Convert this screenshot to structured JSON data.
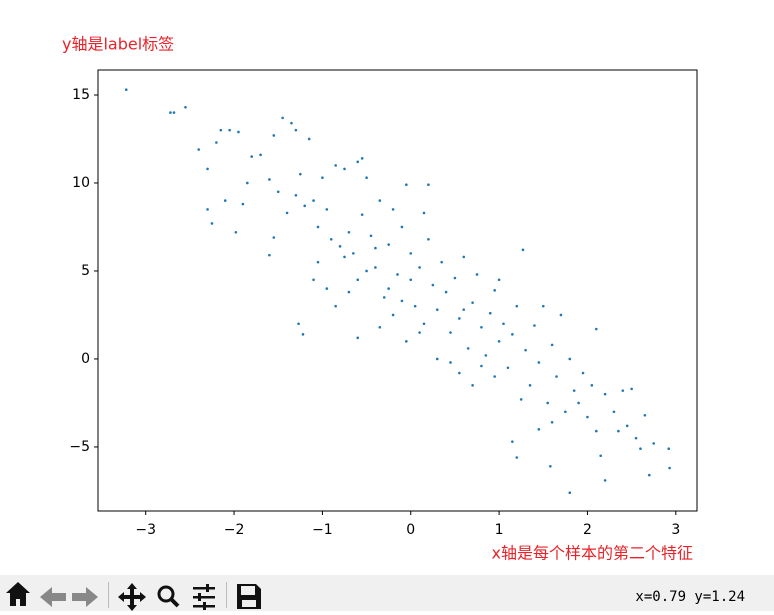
{
  "chart_data": {
    "type": "scatter",
    "y_label": "y轴是label标签",
    "x_label": "x轴是每个样本的第二个特征",
    "color": "#1f77b4",
    "xlim": [
      -3.54,
      3.24
    ],
    "ylim": [
      -8.64,
      16.42
    ],
    "xticks": [
      {
        "value": -3,
        "label": "−3"
      },
      {
        "value": -2,
        "label": "−2"
      },
      {
        "value": -1,
        "label": "−1"
      },
      0,
      1,
      2,
      3
    ],
    "yticks": [
      {
        "value": -5,
        "label": "−5"
      },
      0,
      5,
      10,
      15
    ],
    "x": [
      -3.22,
      -2.72,
      -2.68,
      -2.55,
      -2.4,
      -2.3,
      -2.2,
      -2.15,
      -2.05,
      -1.95,
      -2.1,
      -2.3,
      -2.25,
      -1.98,
      -1.9,
      -1.85,
      -1.8,
      -1.7,
      -1.6,
      -1.55,
      -1.45,
      -1.35,
      -1.3,
      -1.15,
      -1.5,
      -1.4,
      -1.3,
      -1.25,
      -1.2,
      -1.1,
      -1.05,
      -1.0,
      -0.95,
      -0.9,
      -0.85,
      -0.75,
      -0.6,
      -0.55,
      -0.5,
      -1.55,
      -1.6,
      -1.22,
      -1.27,
      -1.1,
      -1.05,
      -0.95,
      -0.8,
      -0.75,
      -0.7,
      -0.65,
      -0.6,
      -0.55,
      -0.5,
      -0.45,
      -0.4,
      -0.35,
      -0.3,
      -0.25,
      -0.2,
      -0.15,
      -0.1,
      -0.05,
      0.0,
      0.05,
      0.1,
      0.15,
      0.2,
      0.25,
      -0.6,
      -0.35,
      -0.2,
      -0.05,
      0.1,
      0.3,
      0.35,
      0.4,
      0.45,
      0.5,
      0.55,
      0.6,
      0.65,
      0.7,
      0.75,
      0.8,
      0.85,
      0.9,
      0.95,
      1.0,
      0.55,
      0.7,
      0.8,
      0.95,
      1.0,
      1.05,
      1.1,
      1.15,
      1.2,
      1.27,
      1.25,
      1.3,
      1.35,
      1.4,
      1.45,
      1.5,
      1.55,
      1.6,
      1.65,
      1.7,
      1.75,
      1.8,
      1.85,
      1.15,
      1.2,
      1.45,
      1.6,
      1.58,
      1.8,
      1.9,
      1.95,
      2.0,
      2.05,
      2.1,
      2.1,
      2.15,
      2.2,
      2.2,
      2.3,
      2.35,
      2.4,
      2.45,
      2.5,
      2.55,
      2.6,
      2.65,
      2.7,
      2.75,
      2.92,
      2.93,
      0.45,
      0.3,
      -0.1,
      -0.85,
      -0.7,
      0.2,
      0.0,
      -0.4,
      -0.25,
      0.6,
      0.15
    ],
    "values": [
      15.3,
      14.0,
      14.0,
      14.3,
      11.9,
      10.8,
      12.3,
      13.0,
      13.0,
      12.9,
      9.0,
      8.5,
      7.7,
      7.2,
      8.8,
      10.0,
      11.5,
      11.6,
      10.2,
      12.7,
      13.7,
      13.4,
      13.0,
      12.5,
      9.5,
      8.3,
      9.3,
      10.5,
      8.7,
      9.0,
      7.5,
      10.3,
      8.5,
      6.8,
      11.0,
      10.8,
      11.2,
      11.4,
      10.3,
      6.9,
      5.9,
      1.4,
      2.0,
      4.5,
      5.5,
      4.0,
      6.4,
      5.8,
      7.2,
      6.0,
      4.5,
      8.2,
      5.0,
      7.0,
      6.3,
      9.0,
      3.5,
      6.5,
      8.5,
      4.8,
      7.5,
      9.9,
      6.0,
      3.0,
      5.2,
      8.3,
      9.9,
      4.2,
      1.2,
      1.8,
      2.5,
      1.0,
      1.5,
      2.8,
      5.5,
      3.8,
      1.5,
      4.6,
      2.3,
      5.8,
      0.6,
      3.2,
      4.8,
      1.8,
      0.2,
      2.6,
      3.9,
      1.0,
      -0.8,
      -1.5,
      -0.4,
      -1.0,
      4.5,
      2.0,
      -0.5,
      1.4,
      3.0,
      6.2,
      -2.3,
      0.5,
      -1.5,
      1.9,
      -0.2,
      3.0,
      -2.5,
      0.8,
      -1.0,
      2.5,
      -3.0,
      0.0,
      -1.8,
      -4.7,
      -5.6,
      -4.0,
      -3.6,
      -6.1,
      -7.6,
      -2.5,
      -0.8,
      -3.3,
      -1.5,
      1.7,
      -4.1,
      -5.5,
      -2.0,
      -6.9,
      -3.0,
      -4.1,
      -1.8,
      -3.8,
      -1.7,
      -4.5,
      -5.1,
      -3.2,
      -6.6,
      -4.8,
      -5.1,
      -6.2,
      -0.2,
      0.0,
      3.3,
      3.0,
      3.8,
      6.8,
      4.5,
      5.2,
      4.0,
      2.8,
      2.0
    ],
    "status": "x=0.79 y=1.24"
  }
}
